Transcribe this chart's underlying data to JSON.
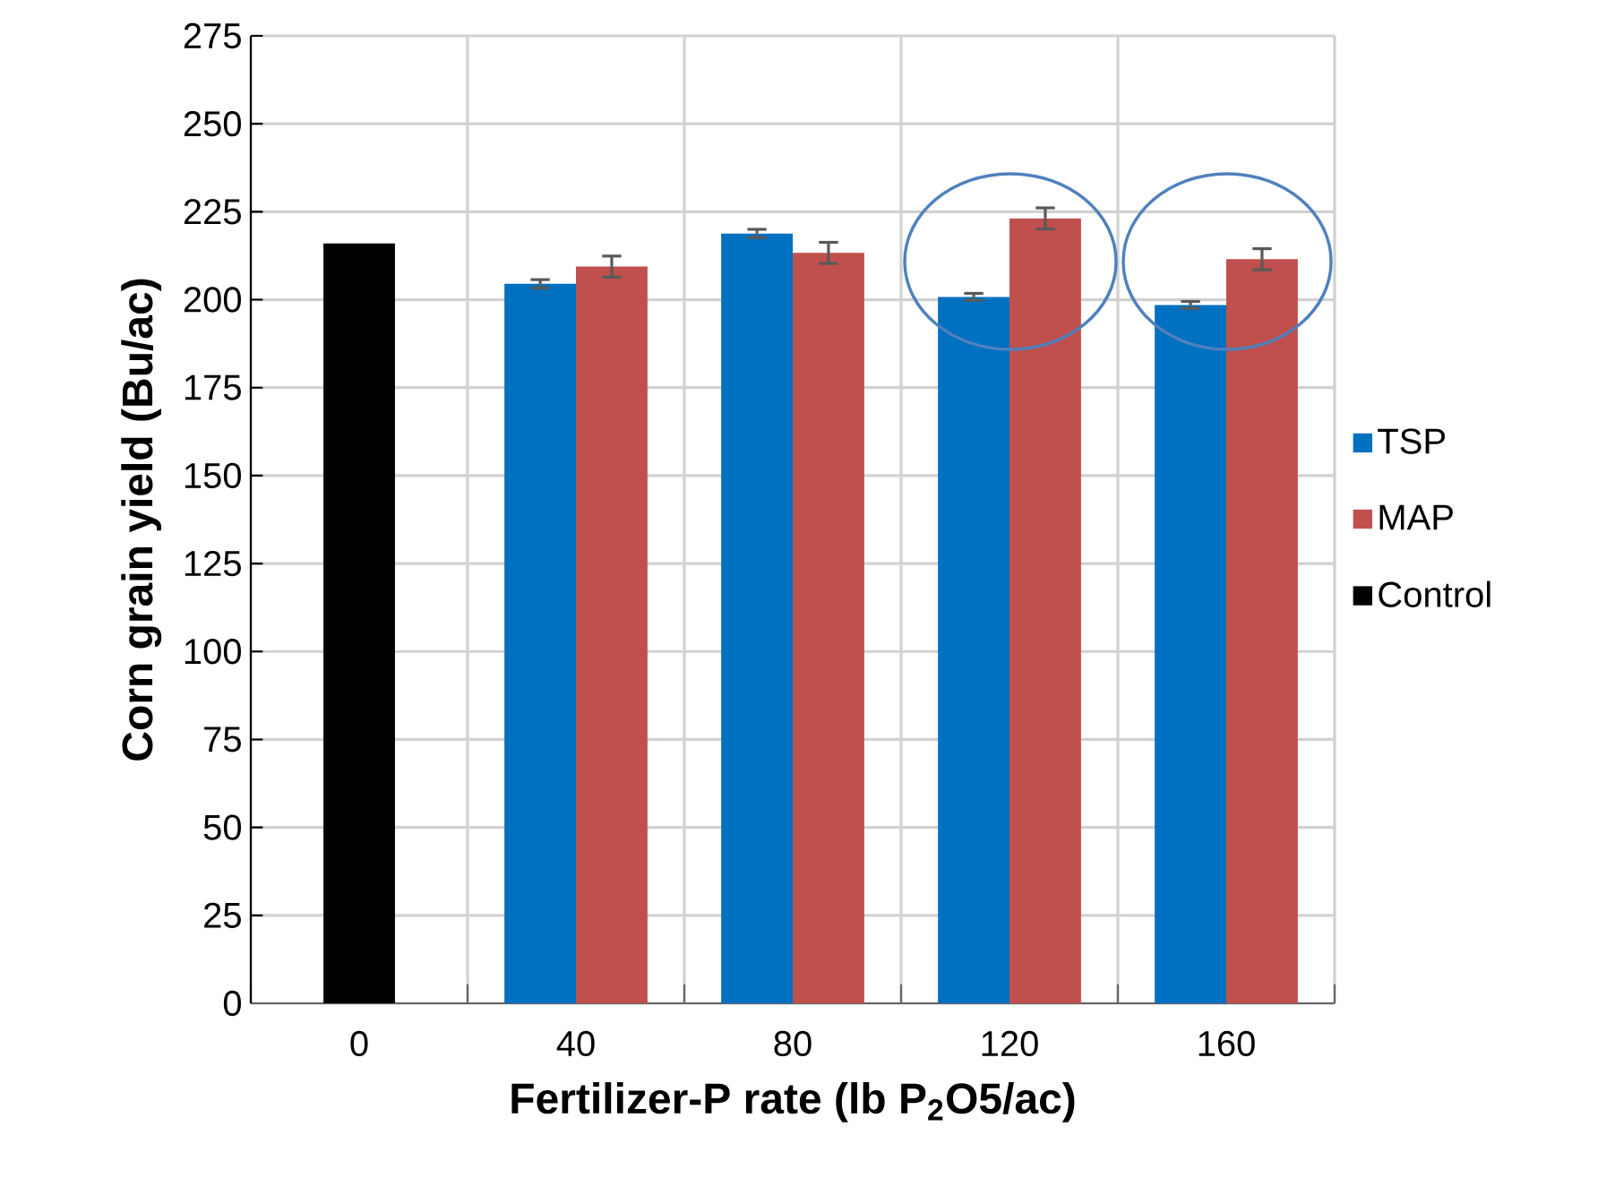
{
  "chart_data": {
    "type": "bar",
    "xlabel": "Fertilizer-P rate (lb P$_{2}$O5/ac)",
    "ylabel": "Corn grain yield (Bu/ac)",
    "categories": [
      "0",
      "40",
      "80",
      "120",
      "160"
    ],
    "series": [
      {
        "name": "TSP",
        "color": "#0070c0",
        "values": [
          null,
          204.5,
          218.8,
          200.8,
          198.5
        ],
        "errors": [
          null,
          1.2,
          1.2,
          1,
          1
        ]
      },
      {
        "name": "MAP",
        "color": "#c0504d",
        "values": [
          null,
          209.4,
          213.3,
          223.1,
          211.5
        ],
        "errors": [
          null,
          3,
          3,
          3,
          3
        ]
      },
      {
        "name": "Control",
        "color": "#000000",
        "values": [
          216,
          null,
          null,
          null,
          null
        ]
      }
    ],
    "ylim": [
      0,
      275
    ],
    "yticks": [
      0,
      25,
      50,
      75,
      100,
      125,
      150,
      175,
      200,
      225,
      250,
      275
    ],
    "grid": true,
    "legend": "right"
  }
}
